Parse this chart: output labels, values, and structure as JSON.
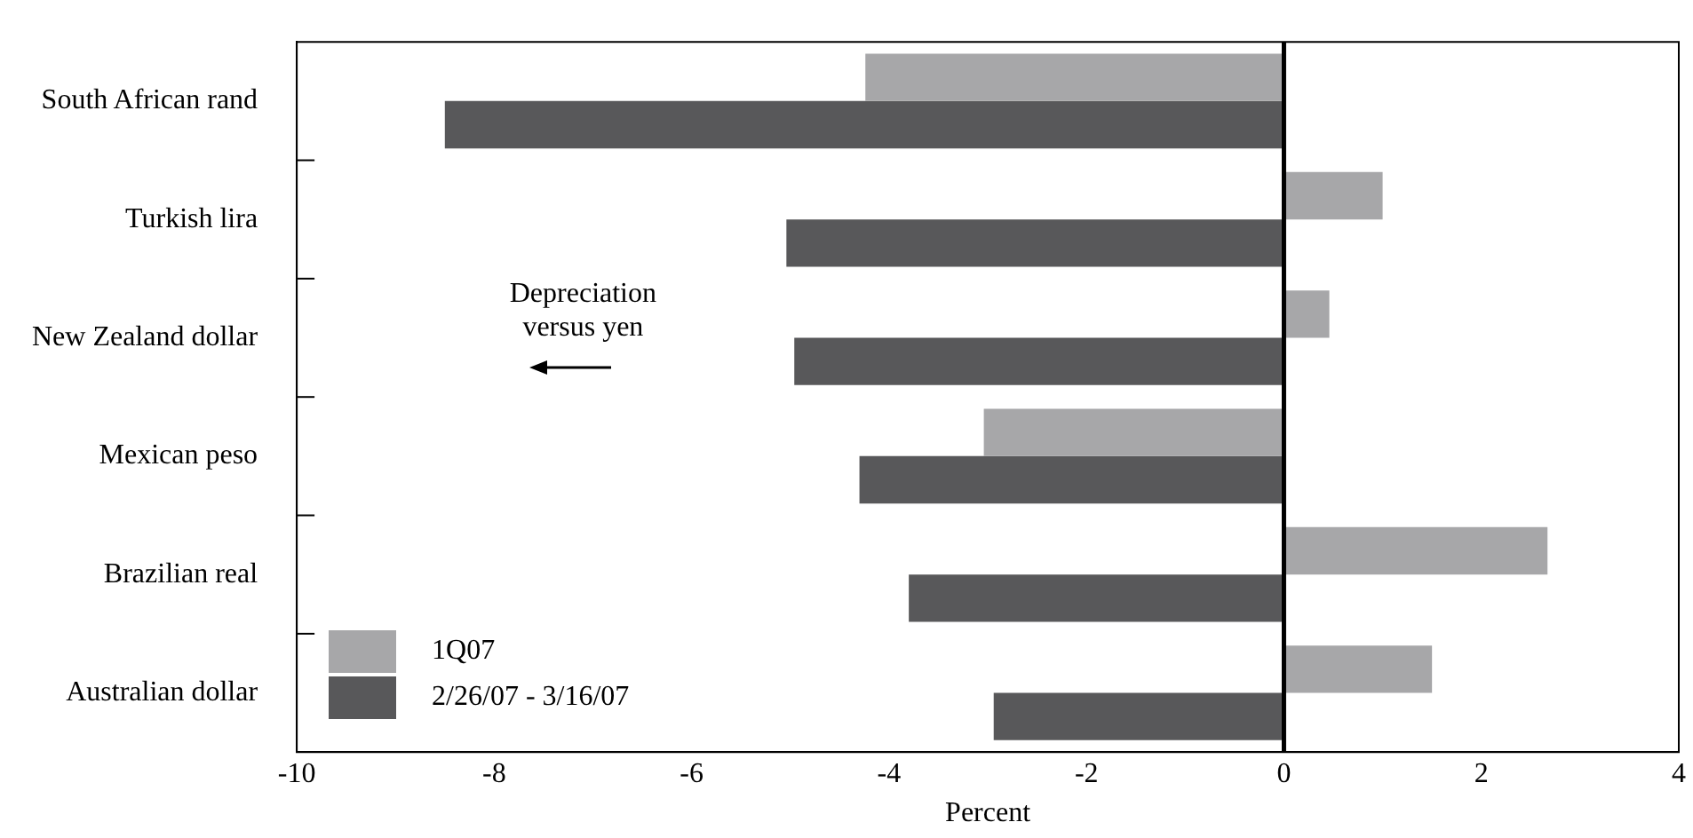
{
  "chart_data": {
    "type": "bar",
    "orientation": "horizontal",
    "xlabel": "Percent",
    "categories": [
      "South African rand",
      "Turkish lira",
      "New Zealand dollar",
      "Mexican peso",
      "Brazilian real",
      "Australian dollar"
    ],
    "series": [
      {
        "name": "1Q07",
        "color": "#a7a7a9",
        "values": [
          -4.24,
          1.0,
          0.46,
          -3.04,
          2.67,
          1.5
        ]
      },
      {
        "name": "2/26/07 - 3/16/07",
        "color": "#58585a",
        "values": [
          -8.5,
          -5.04,
          -4.96,
          -4.3,
          -3.8,
          -2.94
        ]
      }
    ],
    "xlim": [
      -10,
      4
    ],
    "xticks": [
      -10,
      -8,
      -6,
      -4,
      -2,
      0,
      2,
      4
    ],
    "ref_lines": [
      {
        "axis": "x",
        "value": 0,
        "color": "#000000"
      }
    ],
    "annotations": [
      "Depreciation versus yen"
    ],
    "grid": false,
    "legend": "bottom left"
  }
}
